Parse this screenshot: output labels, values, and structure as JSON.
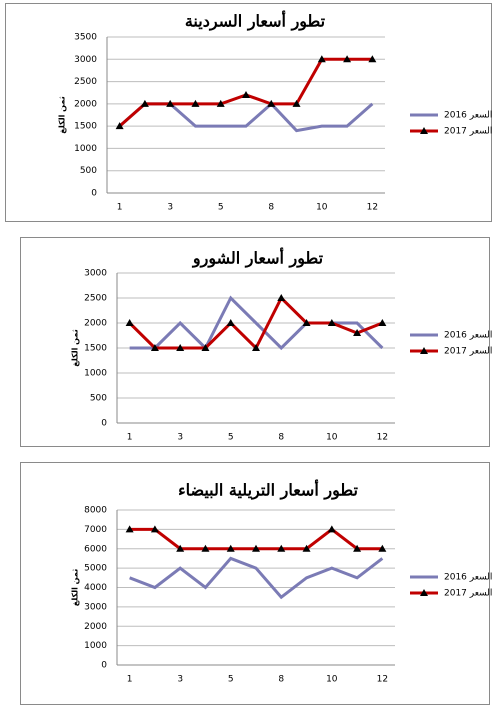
{
  "chart_data": [
    {
      "type": "line",
      "title": "تطور أسعار السردينة",
      "ylabel": "ثمن الكلغ",
      "categories": [
        "1",
        null,
        "3",
        null,
        "5",
        null,
        "8",
        null,
        "10",
        null,
        "12"
      ],
      "series": [
        {
          "name": "2016 السعر",
          "color": "#7b7bb5",
          "marker": null,
          "values": [
            1500,
            2000,
            2000,
            1500,
            1500,
            1500,
            2000,
            1400,
            1500,
            1500,
            2000
          ]
        },
        {
          "name": "2017 السعر",
          "color": "#c00000",
          "marker": "triangle",
          "values": [
            1500,
            2000,
            2000,
            2000,
            2000,
            2200,
            2000,
            2000,
            3000,
            3000,
            3000
          ]
        }
      ],
      "ylim": [
        0,
        3500
      ],
      "yticks": [
        0,
        500,
        1000,
        1500,
        2000,
        2500,
        3000,
        3500
      ],
      "grid": true,
      "legend": "right"
    },
    {
      "type": "line",
      "title": "تطور أسعار الشورو",
      "ylabel": "ثمن الكلغ",
      "categories": [
        "1",
        null,
        "3",
        null,
        "5",
        null,
        "8",
        null,
        "10",
        null,
        "12"
      ],
      "series": [
        {
          "name": "2016 السعر",
          "color": "#7b7bb5",
          "marker": null,
          "values": [
            1500,
            1500,
            2000,
            1500,
            2500,
            2000,
            1500,
            2000,
            2000,
            2000,
            1500
          ]
        },
        {
          "name": "2017 السعر",
          "color": "#c00000",
          "marker": "triangle",
          "values": [
            2000,
            1500,
            1500,
            1500,
            2000,
            1500,
            2500,
            2000,
            2000,
            1800,
            2000
          ]
        }
      ],
      "ylim": [
        0,
        3000
      ],
      "yticks": [
        0,
        500,
        1000,
        1500,
        2000,
        2500,
        3000
      ],
      "grid": true,
      "legend": "right"
    },
    {
      "type": "line",
      "title": "تطور أسعار التريلية البيضاء",
      "ylabel": "ثمن الكلغ",
      "categories": [
        "1",
        null,
        "3",
        null,
        "5",
        null,
        "8",
        null,
        "10",
        null,
        "12"
      ],
      "series": [
        {
          "name": "2016 السعر",
          "color": "#7b7bb5",
          "marker": null,
          "values": [
            4500,
            4000,
            5000,
            4000,
            5500,
            5000,
            3500,
            4500,
            5000,
            4500,
            5500
          ]
        },
        {
          "name": "2017 السعر",
          "color": "#c00000",
          "marker": "triangle",
          "values": [
            7000,
            7000,
            6000,
            6000,
            6000,
            6000,
            6000,
            6000,
            7000,
            6000,
            6000
          ]
        }
      ],
      "ylim": [
        0,
        8000
      ],
      "yticks": [
        0,
        1000,
        2000,
        3000,
        4000,
        5000,
        6000,
        7000,
        8000
      ],
      "grid": true,
      "legend": "right"
    }
  ]
}
